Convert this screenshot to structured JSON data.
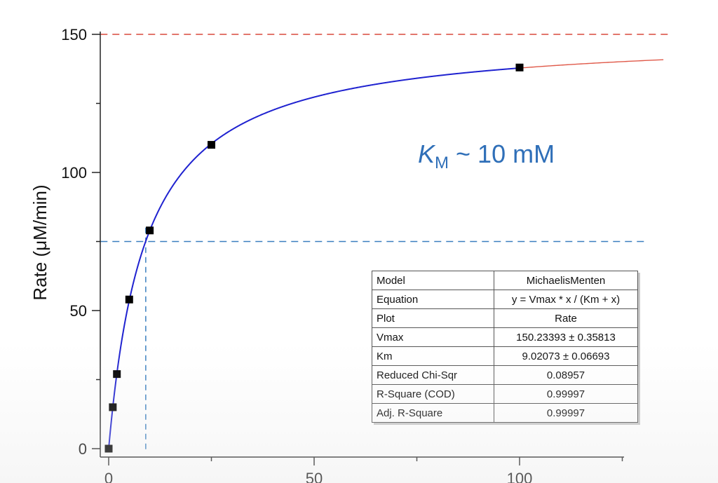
{
  "chart_data": {
    "type": "scatter",
    "title": "",
    "xlabel": "",
    "ylabel": "Rate (μM/min)",
    "xlim": [
      -2,
      125
    ],
    "ylim": [
      -3,
      150
    ],
    "x_ticks": [
      0,
      50,
      100
    ],
    "y_ticks": [
      0,
      50,
      100,
      150
    ],
    "series": [
      {
        "marker": "square",
        "color": "#000000",
        "x": [
          0,
          1,
          2,
          5,
          10,
          25,
          100
        ],
        "y": [
          0,
          15,
          27,
          54,
          79,
          110,
          138
        ]
      }
    ],
    "fit": {
      "model": "MichaelisMenten",
      "vmax": 150.23393,
      "km": 9.02073,
      "x_range": [
        0,
        100
      ],
      "extrapolated_to": 135,
      "color": "#1f22d0",
      "extrapolation_color": "#e05a4a"
    },
    "reference_lines": [
      {
        "orientation": "horizontal",
        "y": 150,
        "color": "#d9483b",
        "style": "dashed"
      },
      {
        "orientation": "horizontal",
        "y": 75,
        "color": "#3a7fbf",
        "style": "dashed"
      },
      {
        "orientation": "vertical",
        "x": 9.02,
        "color": "#3a7fbf",
        "style": "dashed"
      }
    ],
    "annotation": {
      "symbol": "K",
      "subscript": "M",
      "text": " ~ 10 mM",
      "color": "#2f6fb8"
    }
  },
  "fit_table": [
    {
      "param": "Model",
      "value": "MichaelisMenten"
    },
    {
      "param": "Equation",
      "value": "y = Vmax * x / (Km + x)"
    },
    {
      "param": "Plot",
      "value": "Rate"
    },
    {
      "param": "Vmax",
      "value": "150.23393 ± 0.35813"
    },
    {
      "param": "Km",
      "value": "9.02073 ± 0.06693"
    },
    {
      "param": "Reduced Chi-Sqr",
      "value": "0.08957"
    },
    {
      "param": "R-Square (COD)",
      "value": "0.99997"
    },
    {
      "param": "Adj. R-Square",
      "value": "0.99997"
    }
  ]
}
